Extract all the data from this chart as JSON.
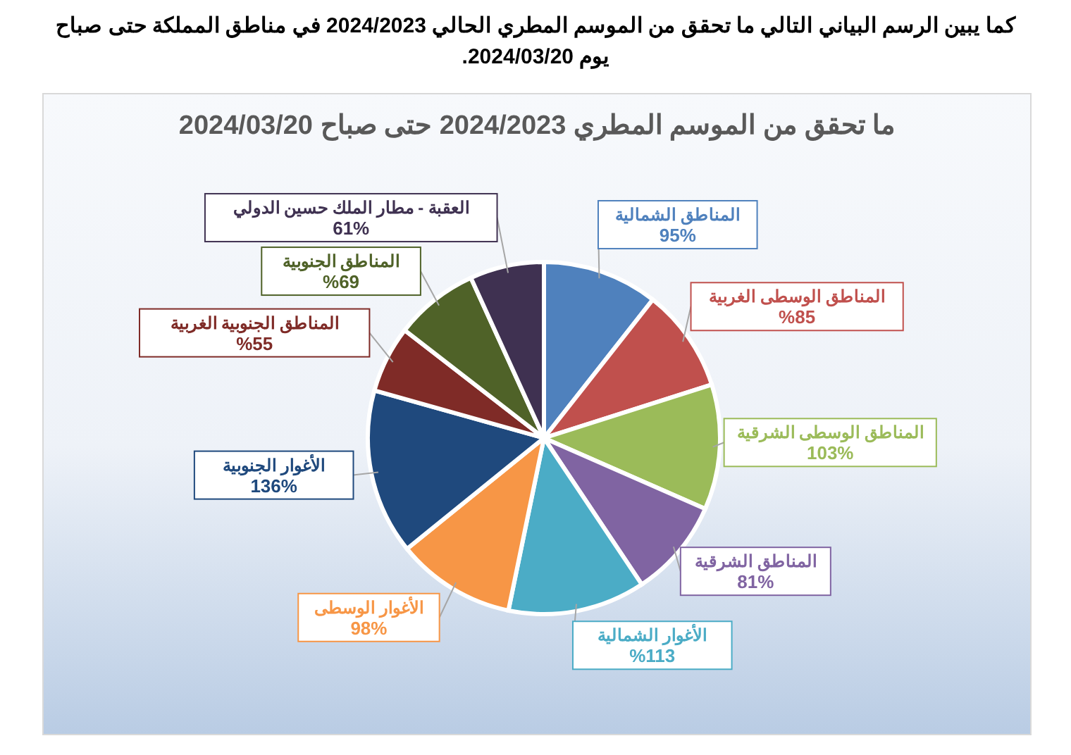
{
  "chart_data": {
    "type": "pie",
    "title": "ما تحقق من الموسم المطري 2024/2023 حتى صباح 2024/03/20",
    "annotations": [
      "كما يبين الرسم البياني التالي ما تحقق من الموسم المطري الحالي 2024/2023 في مناطق المملكة حتى صباح يوم 2024/03/20."
    ],
    "categories": [
      "المناطق الشمالية",
      "المناطق الوسطى الغربية",
      "المناطق الوسطى الشرقية",
      "المناطق الشرقية",
      "الأغوار الشمالية",
      "الأغوار الوسطى",
      "الأغوار الجنوبية",
      "المناطق الجنوبية الغربية",
      "المناطق الجنوبية",
      "العقبة - مطار الملك حسين الدولي"
    ],
    "values": [
      95,
      85,
      103,
      81,
      113,
      98,
      136,
      55,
      69,
      61
    ],
    "value_labels": [
      "95%",
      "%85",
      "103%",
      "81%",
      "%113",
      "98%",
      "136%",
      "%55",
      "%69",
      "61%"
    ],
    "colors": [
      "#4f81bd",
      "#c0504d",
      "#9bbb59",
      "#8064a2",
      "#4bacc6",
      "#f79646",
      "#1f497d",
      "#7f2b27",
      "#4f6228",
      "#3f3151"
    ]
  }
}
